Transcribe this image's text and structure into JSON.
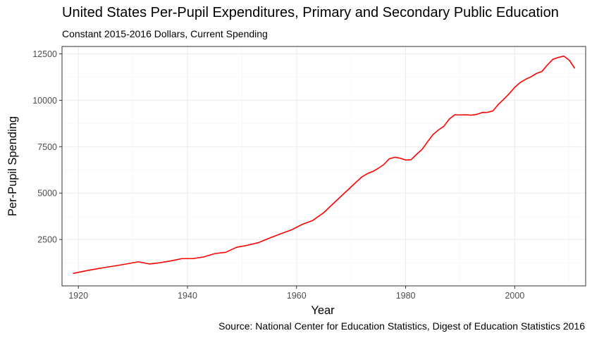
{
  "chart_data": {
    "type": "line",
    "title": "United States Per-Pupil Expenditures, Primary and Secondary Public Education",
    "subtitle": "Constant 2015-2016 Dollars, Current Spending",
    "xlabel": "Year",
    "ylabel": "Per-Pupil Spending",
    "caption": "Source: National Center for Education Statistics, Digest of Education Statistics 2016",
    "xlim": [
      1917,
      2013
    ],
    "ylim": [
      0,
      12900
    ],
    "x_ticks": [
      1920,
      1940,
      1960,
      1980,
      2000
    ],
    "y_ticks": [
      2500,
      5000,
      7500,
      10000,
      12500
    ],
    "x_minor_ticks": [
      1930,
      1950,
      1970,
      1990,
      2010
    ],
    "y_minor_ticks": [
      1250,
      3750,
      6250,
      8750,
      11250
    ],
    "grid": true,
    "series": [
      {
        "name": "Per-Pupil Spending",
        "color": "#ff0000",
        "x": [
          1919,
          1921,
          1923,
          1925,
          1927,
          1929,
          1931,
          1933,
          1935,
          1937,
          1939,
          1941,
          1943,
          1945,
          1947,
          1949,
          1951,
          1953,
          1955,
          1957,
          1959,
          1961,
          1963,
          1965,
          1967,
          1969,
          1971,
          1972,
          1973,
          1974,
          1975,
          1976,
          1977,
          1978,
          1979,
          1980,
          1981,
          1982,
          1983,
          1984,
          1985,
          1986,
          1987,
          1988,
          1989,
          1990,
          1991,
          1992,
          1993,
          1994,
          1995,
          1996,
          1997,
          1998,
          1999,
          2000,
          2001,
          2002,
          2003,
          2004,
          2005,
          2006,
          2007,
          2008,
          2009,
          2010,
          2011
        ],
        "values": [
          670,
          790,
          900,
          1000,
          1090,
          1190,
          1300,
          1180,
          1250,
          1350,
          1470,
          1470,
          1560,
          1740,
          1810,
          2080,
          2190,
          2330,
          2570,
          2800,
          3010,
          3310,
          3530,
          3950,
          4510,
          5060,
          5610,
          5880,
          6050,
          6170,
          6340,
          6540,
          6850,
          6930,
          6880,
          6780,
          6800,
          7090,
          7350,
          7760,
          8150,
          8400,
          8600,
          8990,
          9220,
          9210,
          9220,
          9200,
          9240,
          9340,
          9350,
          9430,
          9780,
          10060,
          10360,
          10700,
          10960,
          11130,
          11270,
          11450,
          11560,
          11910,
          12210,
          12310,
          12380,
          12160,
          11720
        ]
      }
    ]
  }
}
